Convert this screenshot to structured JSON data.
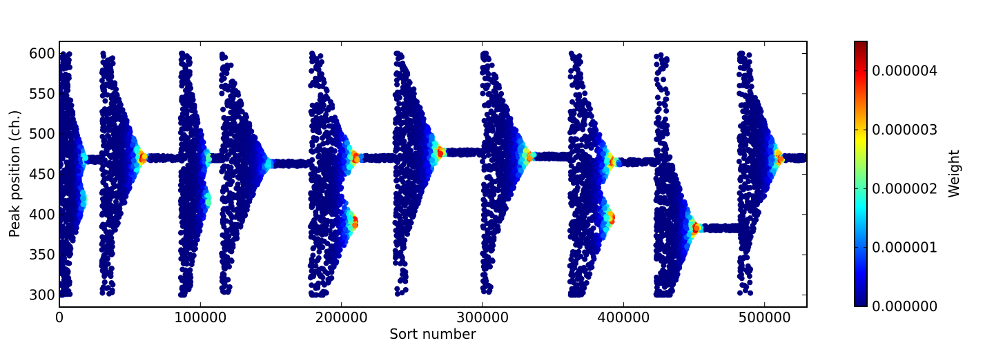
{
  "chart_data": {
    "type": "scatter",
    "title": "",
    "xlabel": "Sort number",
    "ylabel": "Peak position (ch.)",
    "xlim": [
      0,
      530000
    ],
    "ylim": [
      285,
      615
    ],
    "xticks": [
      0,
      100000,
      200000,
      300000,
      400000,
      500000
    ],
    "xtick_labels": [
      "0",
      "100000",
      "200000",
      "300000",
      "400000",
      "500000"
    ],
    "yticks": [
      300,
      350,
      400,
      450,
      500,
      550,
      600
    ],
    "ytick_labels": [
      "300",
      "350",
      "400",
      "450",
      "500",
      "550",
      "600"
    ],
    "grid": false,
    "colorbar": {
      "label": "Weight",
      "colormap": "jet",
      "range": [
        0,
        4.5e-06
      ],
      "ticks": [
        0,
        1e-06,
        2e-06,
        3e-06,
        4e-06
      ],
      "tick_labels": [
        "0.000000",
        "0.000001",
        "0.000002",
        "0.000003",
        "0.000004"
      ]
    },
    "groups": [
      {
        "x_start": 0,
        "x_end": 30000,
        "converge_x": 18000,
        "converge_y": [
          468,
          418
        ],
        "peak_weight": 2.5e-06
      },
      {
        "x_start": 30000,
        "x_end": 86000,
        "converge_x": 59000,
        "converge_y": [
          470
        ],
        "peak_weight": 4.5e-06
      },
      {
        "x_start": 86000,
        "x_end": 115000,
        "converge_x": 106000,
        "converge_y": [
          470,
          418
        ],
        "peak_weight": 2.6e-06
      },
      {
        "x_start": 115000,
        "x_end": 178000,
        "converge_x": 148000,
        "converge_y": [
          463
        ],
        "peak_weight": 1.8e-06
      },
      {
        "x_start": 178000,
        "x_end": 238000,
        "converge_x": 210000,
        "converge_y": [
          470,
          390
        ],
        "peak_weight": 4.5e-06
      },
      {
        "x_start": 238000,
        "x_end": 300000,
        "converge_x": 270000,
        "converge_y": [
          477
        ],
        "peak_weight": 4.4e-06
      },
      {
        "x_start": 300000,
        "x_end": 362000,
        "converge_x": 333000,
        "converge_y": [
          472
        ],
        "peak_weight": 4.2e-06
      },
      {
        "x_start": 362000,
        "x_end": 423000,
        "converge_x": 392000,
        "converge_y": [
          465,
          395
        ],
        "peak_weight": 4.5e-06
      },
      {
        "x_start": 423000,
        "x_end": 482000,
        "converge_x": 451000,
        "converge_y": [
          383
        ],
        "peak_weight": 4.5e-06
      },
      {
        "x_start": 482000,
        "x_end": 530000,
        "converge_x": 511000,
        "converge_y": [
          470
        ],
        "peak_weight": 4.5e-06
      }
    ]
  }
}
